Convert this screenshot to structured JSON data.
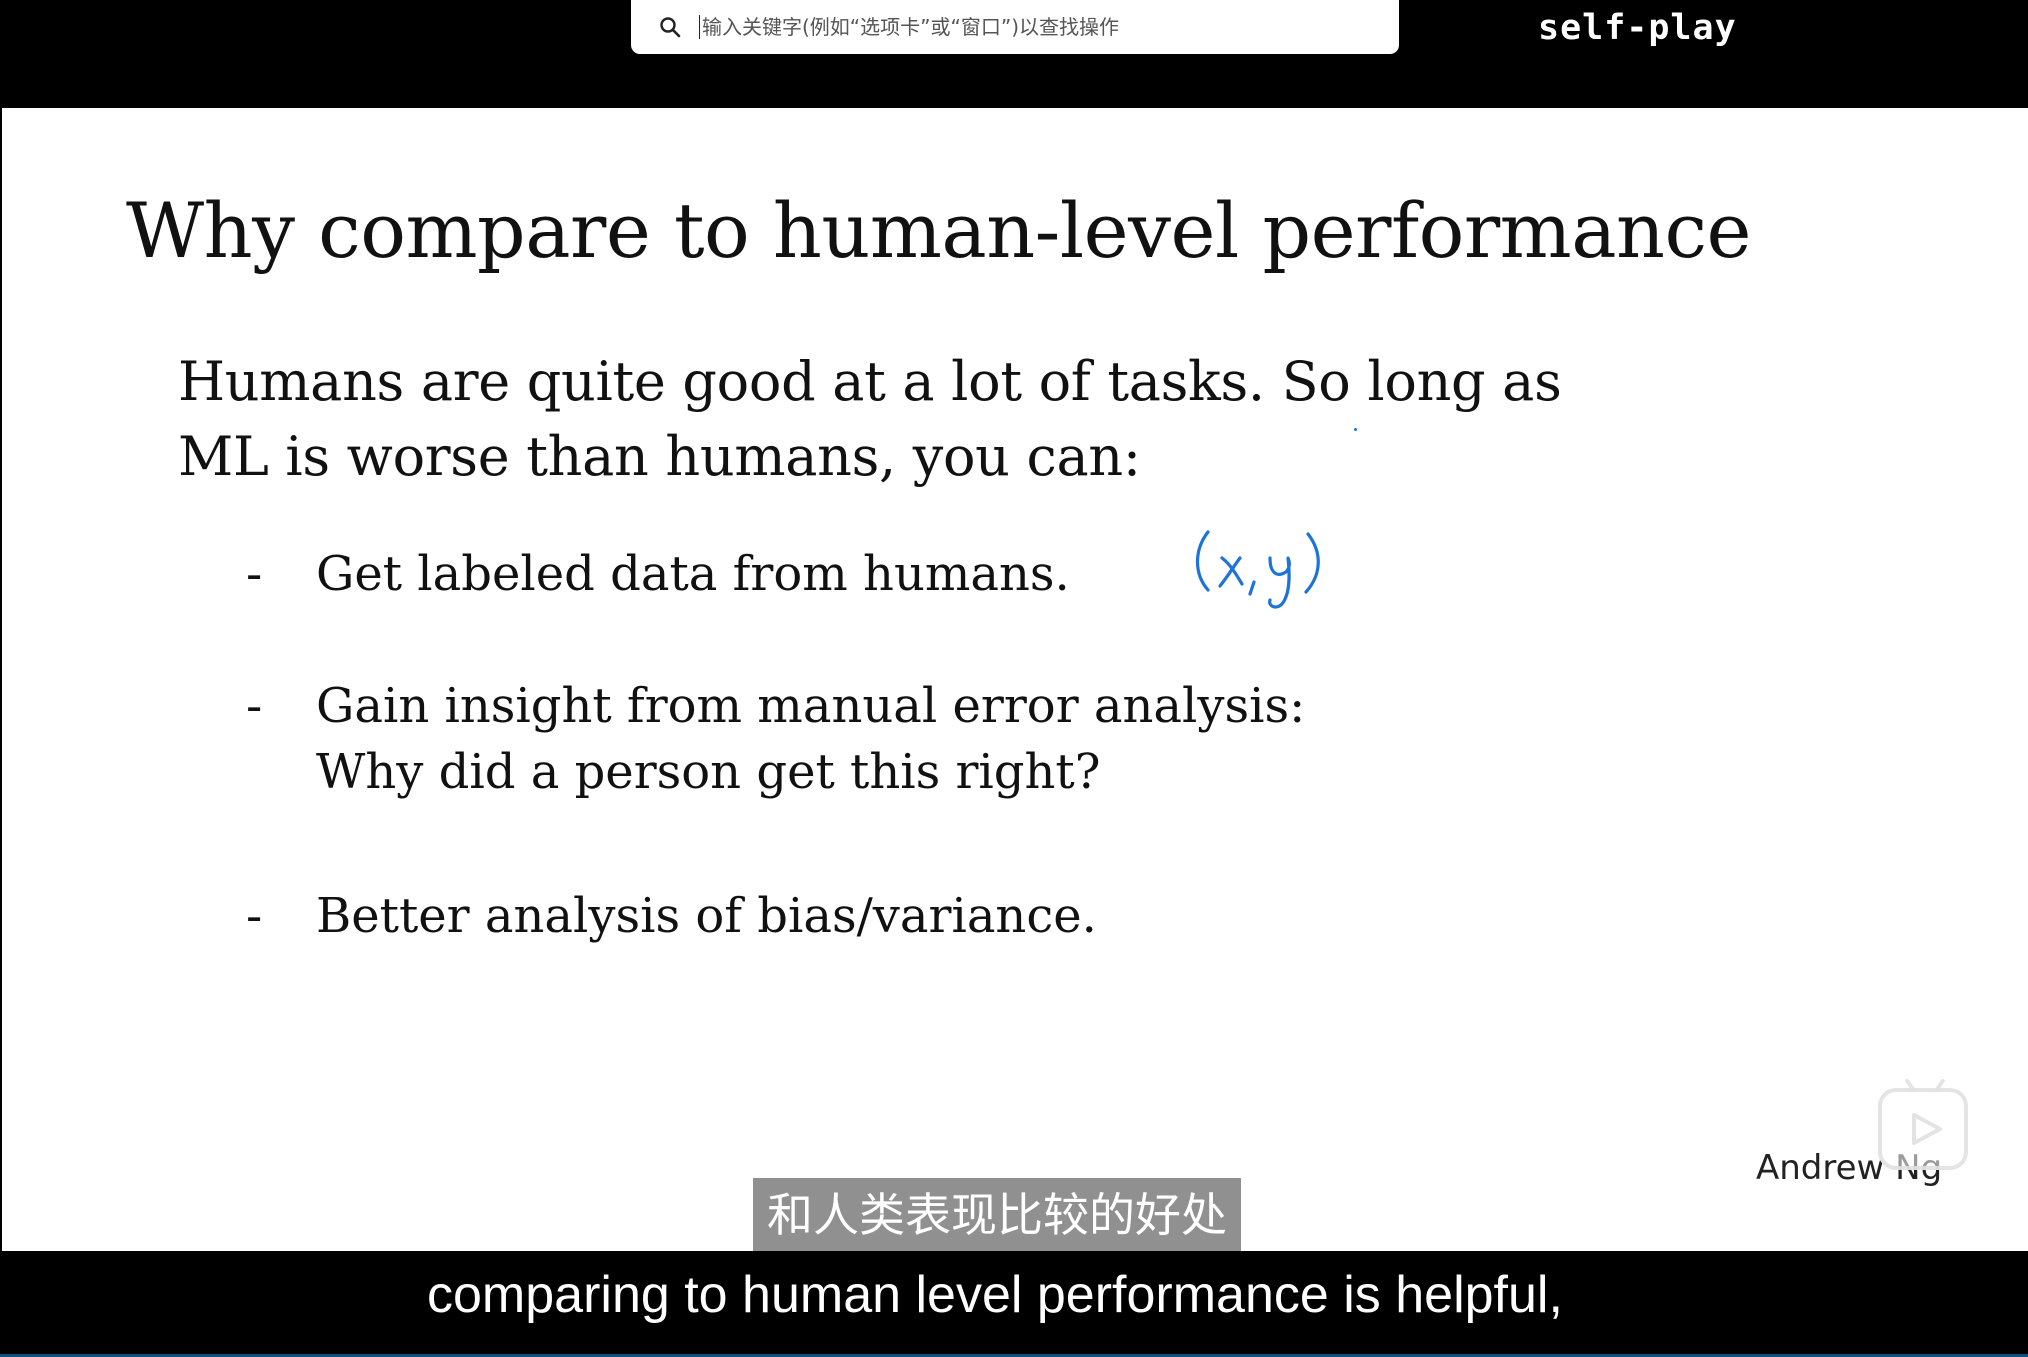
{
  "search": {
    "placeholder": "输入关键字(例如“选项卡”或“窗口”)以查找操作"
  },
  "tab": {
    "title": "self-play"
  },
  "slide": {
    "title": "Why compare to human-level performance",
    "intro_line1": "Humans are quite good at a lot of tasks. So long as",
    "intro_line2": "ML is worse than humans, you can:",
    "bullets": [
      {
        "dash": "-",
        "lines": [
          "Get labeled data from humans."
        ]
      },
      {
        "dash": "-",
        "lines": [
          "Gain insight from manual error analysis:",
          "Why did a person get this right?"
        ]
      },
      {
        "dash": "-",
        "lines": [
          "Better analysis of bias/variance."
        ]
      }
    ],
    "annotation": "(x,y)",
    "author": "Andrew Ng"
  },
  "subtitles": {
    "chinese": "和人类表现比较的好处",
    "english": "comparing to human level performance is helpful,"
  },
  "icons": {
    "search": "search-icon",
    "play": "play-icon"
  },
  "colors": {
    "annotation_ink": "#1e73d8",
    "subtitle_bg": "#787878"
  }
}
